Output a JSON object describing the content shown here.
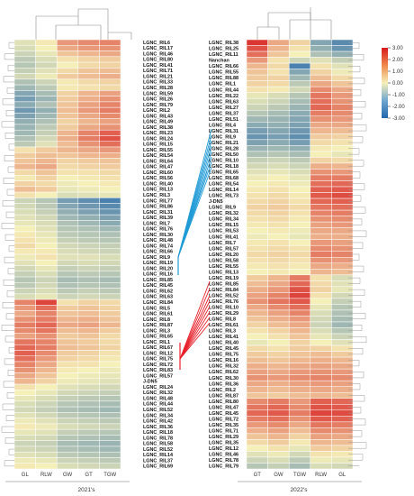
{
  "chart_data": [
    {
      "type": "heatmap",
      "title": "2021's",
      "columns": [
        "GL",
        "RLW",
        "GW",
        "GT",
        "TGW"
      ],
      "rows": [
        "LGNC_RIL6",
        "LGNC_RIL17",
        "LGNC_RIL46",
        "LGNC_RIL80",
        "LGNC_RIL41",
        "LGNC_RIL71",
        "LGNC_RIL21",
        "LGNC_RIL33",
        "LGNC_RIL28",
        "LGNC_RIL59",
        "LGNC_RIL26",
        "LGNC_RIL79",
        "LGNC_RIL2",
        "LGNC_RIL43",
        "LGNC_RIL49",
        "LGNC_RIL38",
        "LGNC_RIL23",
        "LGNC_RIL24",
        "LGNC_RIL15",
        "LGNC_RIL55",
        "LGNC_RIL54",
        "LGNC_RIL64",
        "LGNC_RIL47",
        "LGNC_RIL60",
        "LGNC_RIL56",
        "LGNC_RIL40",
        "LGNC_RIL13",
        "LGNC_RIL3",
        "LGNC_RIL77",
        "LGNC_RIL86",
        "LGNC_RIL31",
        "LGNC_RIL39",
        "LGNC_RIL7",
        "LGNC_RIL76",
        "LGNC_RIL30",
        "LGNC_RIL48",
        "LGNC_RIL74",
        "LGNC_RIL66",
        "LGNC_RIL9",
        "LGNC_RIL19",
        "LGNC_RIL20",
        "LGNC_RIL16",
        "LGNC_RIL85",
        "LGNC_RIL45",
        "LGNC_RIL62",
        "LGNC_RIL63",
        "LGNC_RIL84",
        "LGNC_RIL5",
        "LGNC_RIL61",
        "LGNC_RIL8",
        "LGNC_RIL87",
        "LGNC_RIL3",
        "LGNC_RIL65",
        "LGNC_RIL1",
        "LGNC_RIL67",
        "LGNC_RIL12",
        "LGNC_RIL75",
        "LGNC_RIL72",
        "LGNC_RIL83",
        "LGNC_RIL57",
        "J-DN5",
        "LGNC_RIL24",
        "LGNC_RIL32",
        "LGNC_RIL48",
        "LGNC_RIL44",
        "LGNC_RIL52",
        "LGNC_RIL34",
        "LGNC_RIL42",
        "LGNC_RIL36",
        "LGNC_RIL18",
        "LGNC_RIL78",
        "LGNC_RIL58",
        "LGNC_RIL52",
        "LGNC_RIL14",
        "LGNC_RIL37",
        "LGNC_RIL69"
      ],
      "values": [
        [
          -0.3,
          0.1,
          1.2,
          1.4,
          1.5
        ],
        [
          -0.4,
          0.0,
          1.0,
          1.2,
          1.3
        ],
        [
          -0.6,
          -0.2,
          0.6,
          0.8,
          1.0
        ],
        [
          -0.8,
          -0.4,
          0.2,
          0.4,
          0.5
        ],
        [
          -0.9,
          -0.5,
          0.0,
          0.3,
          0.4
        ],
        [
          -0.7,
          -0.3,
          0.3,
          0.6,
          0.7
        ],
        [
          -0.5,
          -0.1,
          0.5,
          0.7,
          0.9
        ],
        [
          -1.0,
          -0.6,
          0.1,
          0.3,
          0.4
        ],
        [
          -1.2,
          -0.8,
          0.1,
          0.2,
          0.3
        ],
        [
          -1.6,
          -1.1,
          0.4,
          0.8,
          1.1
        ],
        [
          -1.8,
          -1.3,
          0.5,
          0.9,
          1.3
        ],
        [
          -1.5,
          -1.0,
          0.6,
          1.1,
          1.5
        ],
        [
          -1.9,
          -1.4,
          0.7,
          1.2,
          1.6
        ],
        [
          -1.7,
          -1.2,
          0.6,
          1.0,
          1.4
        ],
        [
          -1.4,
          -1.0,
          0.4,
          0.8,
          1.1
        ],
        [
          -1.3,
          -0.8,
          0.5,
          1.0,
          1.3
        ],
        [
          -1.2,
          -0.7,
          0.8,
          1.5,
          2.0
        ],
        [
          -1.0,
          -0.5,
          0.9,
          1.6,
          2.2
        ],
        [
          -0.8,
          -0.3,
          0.7,
          1.3,
          1.8
        ],
        [
          0.2,
          0.5,
          0.8,
          1.0,
          1.2
        ],
        [
          0.5,
          0.7,
          0.6,
          0.8,
          0.9
        ],
        [
          0.6,
          0.8,
          0.4,
          0.5,
          0.6
        ],
        [
          0.8,
          1.0,
          0.3,
          0.4,
          0.5
        ],
        [
          0.3,
          0.6,
          0.2,
          0.2,
          0.3
        ],
        [
          0.1,
          0.4,
          0.0,
          0.1,
          0.2
        ],
        [
          0.4,
          0.3,
          -0.1,
          0.0,
          0.1
        ],
        [
          0.7,
          0.5,
          -0.2,
          -0.1,
          0.0
        ],
        [
          0.2,
          0.0,
          -0.4,
          -0.3,
          -0.2
        ],
        [
          -0.6,
          -0.9,
          -1.8,
          -2.1,
          -2.4
        ],
        [
          -0.5,
          -0.8,
          -1.6,
          -1.9,
          -2.2
        ],
        [
          -0.4,
          -0.7,
          -1.4,
          -1.7,
          -2.0
        ],
        [
          -0.3,
          -0.5,
          -1.2,
          -1.4,
          -1.7
        ],
        [
          -0.2,
          -0.4,
          -1.0,
          -1.2,
          -1.5
        ],
        [
          0.0,
          -0.3,
          -0.9,
          -1.0,
          -1.2
        ],
        [
          0.1,
          -0.2,
          -0.8,
          -0.9,
          -1.0
        ],
        [
          0.2,
          -0.1,
          -0.7,
          -0.8,
          -0.9
        ],
        [
          0.3,
          0.0,
          -0.5,
          -0.6,
          -0.7
        ],
        [
          0.1,
          0.1,
          -0.4,
          -0.5,
          -0.6
        ],
        [
          -0.1,
          0.2,
          -0.3,
          -0.3,
          -0.4
        ],
        [
          -0.3,
          0.0,
          -0.5,
          -0.4,
          -0.5
        ],
        [
          -0.5,
          -0.2,
          -0.7,
          -0.6,
          -0.7
        ],
        [
          -0.7,
          -0.4,
          -0.9,
          -0.8,
          -0.9
        ],
        [
          -0.9,
          -0.6,
          -1.1,
          -1.0,
          -1.1
        ],
        [
          -0.8,
          -0.5,
          -1.0,
          -0.9,
          -1.0
        ],
        [
          -0.6,
          -0.4,
          -0.8,
          -0.7,
          -0.8
        ],
        [
          -0.4,
          -0.2,
          -0.6,
          -0.5,
          -0.6
        ],
        [
          1.5,
          2.4,
          0.2,
          0.4,
          0.3
        ],
        [
          1.2,
          1.8,
          0.5,
          0.6,
          0.4
        ],
        [
          1.0,
          1.5,
          0.6,
          0.7,
          0.5
        ],
        [
          1.3,
          1.6,
          0.8,
          0.9,
          0.6
        ],
        [
          1.6,
          1.9,
          1.0,
          1.1,
          0.8
        ],
        [
          1.4,
          1.7,
          0.7,
          0.8,
          0.5
        ],
        [
          1.1,
          1.3,
          0.5,
          0.6,
          0.3
        ],
        [
          1.7,
          1.5,
          0.6,
          0.5,
          0.3
        ],
        [
          1.9,
          1.6,
          0.7,
          0.6,
          0.4
        ],
        [
          2.0,
          1.4,
          0.5,
          0.4,
          0.2
        ],
        [
          1.8,
          1.2,
          0.4,
          0.3,
          0.1
        ],
        [
          1.5,
          1.0,
          0.2,
          0.2,
          0.0
        ],
        [
          1.3,
          0.8,
          0.1,
          0.0,
          -0.1
        ],
        [
          1.0,
          0.6,
          0.0,
          -0.1,
          -0.2
        ],
        [
          0.8,
          0.4,
          -0.1,
          -0.2,
          -0.3
        ],
        [
          0.2,
          0.0,
          -0.3,
          -0.4,
          -0.5
        ],
        [
          0.0,
          -0.2,
          -0.5,
          -0.6,
          -0.7
        ],
        [
          -0.2,
          -0.4,
          -0.7,
          -0.8,
          -0.9
        ],
        [
          -0.4,
          -0.6,
          -0.9,
          -1.0,
          -1.1
        ],
        [
          -0.5,
          -0.7,
          -1.0,
          -1.1,
          -1.2
        ],
        [
          -0.3,
          -0.5,
          -0.8,
          -0.9,
          -1.0
        ],
        [
          -0.1,
          -0.3,
          -0.6,
          -0.7,
          -0.8
        ],
        [
          0.1,
          -0.1,
          -0.4,
          -0.5,
          -0.6
        ],
        [
          -0.2,
          -0.3,
          -0.7,
          -0.8,
          -0.9
        ],
        [
          -0.4,
          -0.5,
          -0.9,
          -1.0,
          -1.1
        ],
        [
          -0.6,
          -0.7,
          -1.1,
          -1.2,
          -1.3
        ],
        [
          -0.5,
          -0.6,
          -1.0,
          -1.1,
          -1.2
        ],
        [
          -0.3,
          -0.4,
          -0.8,
          -0.9,
          -1.0
        ],
        [
          -0.1,
          -0.2,
          -0.6,
          -0.7,
          -0.8
        ],
        [
          0.1,
          0.0,
          -0.4,
          -0.5,
          -0.6
        ]
      ]
    },
    {
      "type": "heatmap",
      "title": "2022's",
      "columns": [
        "GT",
        "GW",
        "TGW",
        "RLW",
        "GL"
      ],
      "rows": [
        "LGNC_RIL38",
        "LGNC_RIL25",
        "LGNC_RIL11",
        "Nanchan",
        "LGNC_RIL66",
        "LGNC_RIL55",
        "LGNC_RIL88",
        "LGNC_RIL1",
        "LGNC_RIL44",
        "LGNC_RIL22",
        "LGNC_RIL63",
        "LGNC_RIL27",
        "LGNC_RIL37",
        "LGNC_RIL51",
        "LGNC_RIL4",
        "LGNC_RIL31",
        "LGNC_RIL9",
        "LGNC_RIL21",
        "LGNC_RIL28",
        "LGNC_RIL50",
        "LGNC_RIL10",
        "LGNC_RIL18",
        "LGNC_RIL65",
        "LGNC_RIL68",
        "LGNC_RIL54",
        "LGNC_RIL14",
        "LGNC_RIL73",
        "J-DN5",
        "LGNC_RIL9",
        "LGNC_RIL32",
        "LGNC_RIL34",
        "LGNC_RIL15",
        "LGNC_RIL53",
        "LGNC_RIL41",
        "LGNC_RIL7",
        "LGNC_RIL57",
        "LGNC_RIL20",
        "LGNC_RIL58",
        "LGNC_RIL55",
        "LGNC_RIL13",
        "LGNC_RIL19",
        "LGNC_RIL85",
        "LGNC_RIL84",
        "LGNC_RIL52",
        "LGNC_RIL76",
        "LGNC_RIL10",
        "LGNC_RIL29",
        "LGNC_RIL8",
        "LGNC_RIL61",
        "LGNC_RIL3",
        "LGNC_RIL41",
        "LGNC_RIL40",
        "LGNC_RIL45",
        "LGNC_RIL75",
        "LGNC_RIL16",
        "LGNC_RIL32",
        "LGNC_RIL62",
        "LGNC_RIL30",
        "LGNC_RIL36",
        "LGNC_RIL2",
        "LGNC_RIL87",
        "LGNC_RIL80",
        "LGNC_RIL47",
        "LGNC_RIL45",
        "LGNC_RIL72",
        "LGNC_RIL35",
        "LGNC_RIL71",
        "LGNC_RIL29",
        "LGNC_RIL35",
        "LGNC_RIL12",
        "LGNC_RIL46",
        "LGNC_RIL78",
        "LGNC_RIL79"
      ],
      "values": [
        [
          2.6,
          1.0,
          0.4,
          -1.6,
          -2.2
        ],
        [
          2.2,
          0.8,
          0.2,
          -1.4,
          -2.0
        ],
        [
          1.8,
          0.6,
          0.0,
          -1.0,
          -1.4
        ],
        [
          1.2,
          0.2,
          -0.6,
          -0.3,
          -0.7
        ],
        [
          0.8,
          0.3,
          -2.4,
          0.2,
          -0.3
        ],
        [
          0.6,
          0.2,
          -1.6,
          0.4,
          -0.1
        ],
        [
          0.5,
          0.4,
          -1.2,
          0.7,
          0.3
        ],
        [
          0.4,
          0.3,
          -0.8,
          1.0,
          0.6
        ],
        [
          0.2,
          0.1,
          -0.5,
          1.4,
          1.0
        ],
        [
          -0.2,
          -0.4,
          -0.9,
          1.7,
          1.2
        ],
        [
          -0.4,
          -0.6,
          -1.1,
          1.8,
          1.3
        ],
        [
          -0.6,
          -0.8,
          -1.3,
          1.9,
          1.5
        ],
        [
          -0.9,
          -1.1,
          -1.5,
          1.6,
          1.4
        ],
        [
          -1.2,
          -1.3,
          -1.6,
          1.3,
          1.2
        ],
        [
          -1.5,
          -1.4,
          -1.7,
          1.0,
          1.0
        ],
        [
          -1.8,
          -1.6,
          -1.9,
          0.8,
          0.7
        ],
        [
          -2.0,
          -1.8,
          -2.1,
          0.5,
          0.4
        ],
        [
          -1.7,
          -1.5,
          -1.8,
          0.3,
          0.2
        ],
        [
          -1.3,
          -1.2,
          -1.4,
          0.1,
          0.0
        ],
        [
          -1.0,
          -0.9,
          -1.1,
          0.0,
          -0.2
        ],
        [
          -0.7,
          -0.6,
          -0.8,
          0.4,
          0.3
        ],
        [
          -0.5,
          -0.4,
          -0.6,
          0.9,
          0.8
        ],
        [
          -0.3,
          -0.2,
          -0.4,
          1.3,
          1.2
        ],
        [
          -0.1,
          0.0,
          -0.2,
          1.6,
          1.6
        ],
        [
          0.0,
          0.1,
          -0.1,
          1.8,
          1.9
        ],
        [
          0.1,
          0.2,
          0.0,
          2.0,
          2.1
        ],
        [
          0.2,
          0.3,
          0.1,
          2.1,
          2.3
        ],
        [
          0.3,
          0.4,
          0.2,
          1.9,
          2.0
        ],
        [
          0.4,
          0.5,
          0.3,
          1.7,
          1.8
        ],
        [
          0.3,
          0.4,
          0.2,
          1.5,
          1.6
        ],
        [
          0.2,
          0.3,
          0.1,
          1.3,
          1.4
        ],
        [
          0.1,
          0.2,
          0.0,
          1.1,
          1.2
        ],
        [
          0.0,
          0.1,
          -0.1,
          1.0,
          1.0
        ],
        [
          -0.1,
          0.0,
          -0.2,
          0.9,
          0.9
        ],
        [
          0.1,
          0.2,
          0.0,
          1.2,
          1.1
        ],
        [
          0.2,
          0.3,
          0.2,
          1.4,
          1.3
        ],
        [
          0.3,
          0.4,
          0.3,
          1.6,
          1.5
        ],
        [
          0.2,
          0.3,
          0.2,
          1.3,
          1.2
        ],
        [
          0.1,
          0.2,
          0.1,
          1.0,
          0.9
        ],
        [
          0.0,
          0.1,
          0.0,
          0.8,
          0.7
        ],
        [
          0.5,
          0.8,
          1.6,
          0.2,
          -0.4
        ],
        [
          0.7,
          1.0,
          1.9,
          0.3,
          -0.3
        ],
        [
          0.9,
          1.2,
          2.2,
          0.4,
          -0.2
        ],
        [
          1.1,
          1.5,
          2.4,
          0.2,
          -0.5
        ],
        [
          1.3,
          1.7,
          2.1,
          0.0,
          -0.7
        ],
        [
          1.0,
          1.4,
          1.8,
          -0.2,
          -0.9
        ],
        [
          0.8,
          1.1,
          1.5,
          -0.4,
          -1.0
        ],
        [
          0.6,
          0.9,
          1.2,
          -0.5,
          -1.1
        ],
        [
          0.4,
          0.7,
          1.0,
          -0.6,
          -1.2
        ],
        [
          0.2,
          0.4,
          0.8,
          -0.4,
          -0.9
        ],
        [
          0.0,
          0.2,
          0.6,
          -0.2,
          -0.6
        ],
        [
          -0.2,
          0.0,
          0.4,
          0.0,
          -0.3
        ],
        [
          0.3,
          0.2,
          0.5,
          0.4,
          0.2
        ],
        [
          0.5,
          0.4,
          0.6,
          0.7,
          0.5
        ],
        [
          0.7,
          0.6,
          0.8,
          0.9,
          0.8
        ],
        [
          0.9,
          0.8,
          1.0,
          1.1,
          1.0
        ],
        [
          1.1,
          1.0,
          1.2,
          1.3,
          1.2
        ],
        [
          1.3,
          1.2,
          1.4,
          1.5,
          1.4
        ],
        [
          1.0,
          0.9,
          1.1,
          1.2,
          1.1
        ],
        [
          0.8,
          0.7,
          0.9,
          1.0,
          0.9
        ],
        [
          0.6,
          0.5,
          0.7,
          0.8,
          0.7
        ],
        [
          1.4,
          1.6,
          1.2,
          2.0,
          1.9
        ],
        [
          1.7,
          1.9,
          1.4,
          2.2,
          2.1
        ],
        [
          1.9,
          2.1,
          1.6,
          2.4,
          2.3
        ],
        [
          1.6,
          1.8,
          1.3,
          2.1,
          2.0
        ],
        [
          1.2,
          1.4,
          1.0,
          1.7,
          1.6
        ],
        [
          0.9,
          1.1,
          0.7,
          1.4,
          1.3
        ],
        [
          0.6,
          0.8,
          0.4,
          1.1,
          1.0
        ],
        [
          0.3,
          0.5,
          0.1,
          0.8,
          0.7
        ],
        [
          0.0,
          0.2,
          -0.2,
          0.5,
          0.4
        ],
        [
          -0.3,
          -0.1,
          -0.5,
          0.2,
          0.1
        ],
        [
          -0.6,
          -0.4,
          -0.8,
          -0.1,
          -0.2
        ],
        [
          -0.9,
          -0.7,
          -1.1,
          -0.4,
          -0.5
        ]
      ]
    }
  ],
  "legend": {
    "ticks": [
      "3.00",
      "2.00",
      "1.00",
      "0.00",
      "-1.00",
      "-2.00",
      "-3.00"
    ],
    "range": [
      -3,
      3
    ]
  },
  "colors": {
    "low": "#2166ac",
    "mid": "#f5efb8",
    "high": "#d7191c",
    "link_negative": "#1f9ad6",
    "link_positive": "#e8202a"
  }
}
